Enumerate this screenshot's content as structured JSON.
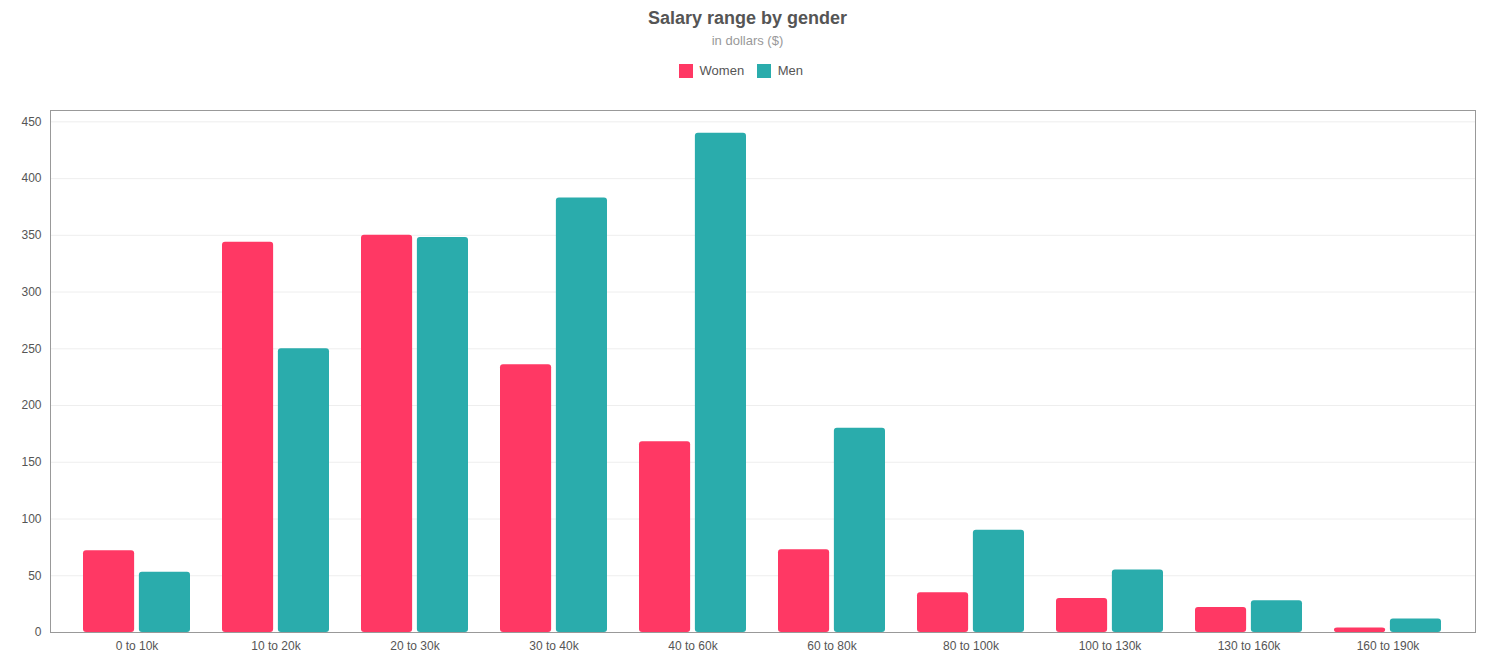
{
  "chart_data": {
    "type": "bar",
    "title": "Salary range by gender",
    "subtitle": "in dollars ($)",
    "categories": [
      "0 to 10k",
      "10 to 20k",
      "20 to 30k",
      "30 to 40k",
      "40 to 60k",
      "60 to 80k",
      "80 to 100k",
      "100 to 130k",
      "130 to 160k",
      "160 to 190k"
    ],
    "series": [
      {
        "name": "Women",
        "color": "#FF3864",
        "values": [
          72,
          344,
          350,
          236,
          168,
          73,
          35,
          30,
          22,
          4
        ]
      },
      {
        "name": "Men",
        "color": "#2AACAC",
        "values": [
          53,
          250,
          348,
          383,
          440,
          180,
          90,
          55,
          28,
          12
        ]
      }
    ],
    "ylim": [
      0,
      460
    ],
    "yticks": [
      0,
      50,
      100,
      150,
      200,
      250,
      300,
      350,
      400,
      450
    ],
    "grid": true,
    "legend": "top"
  }
}
